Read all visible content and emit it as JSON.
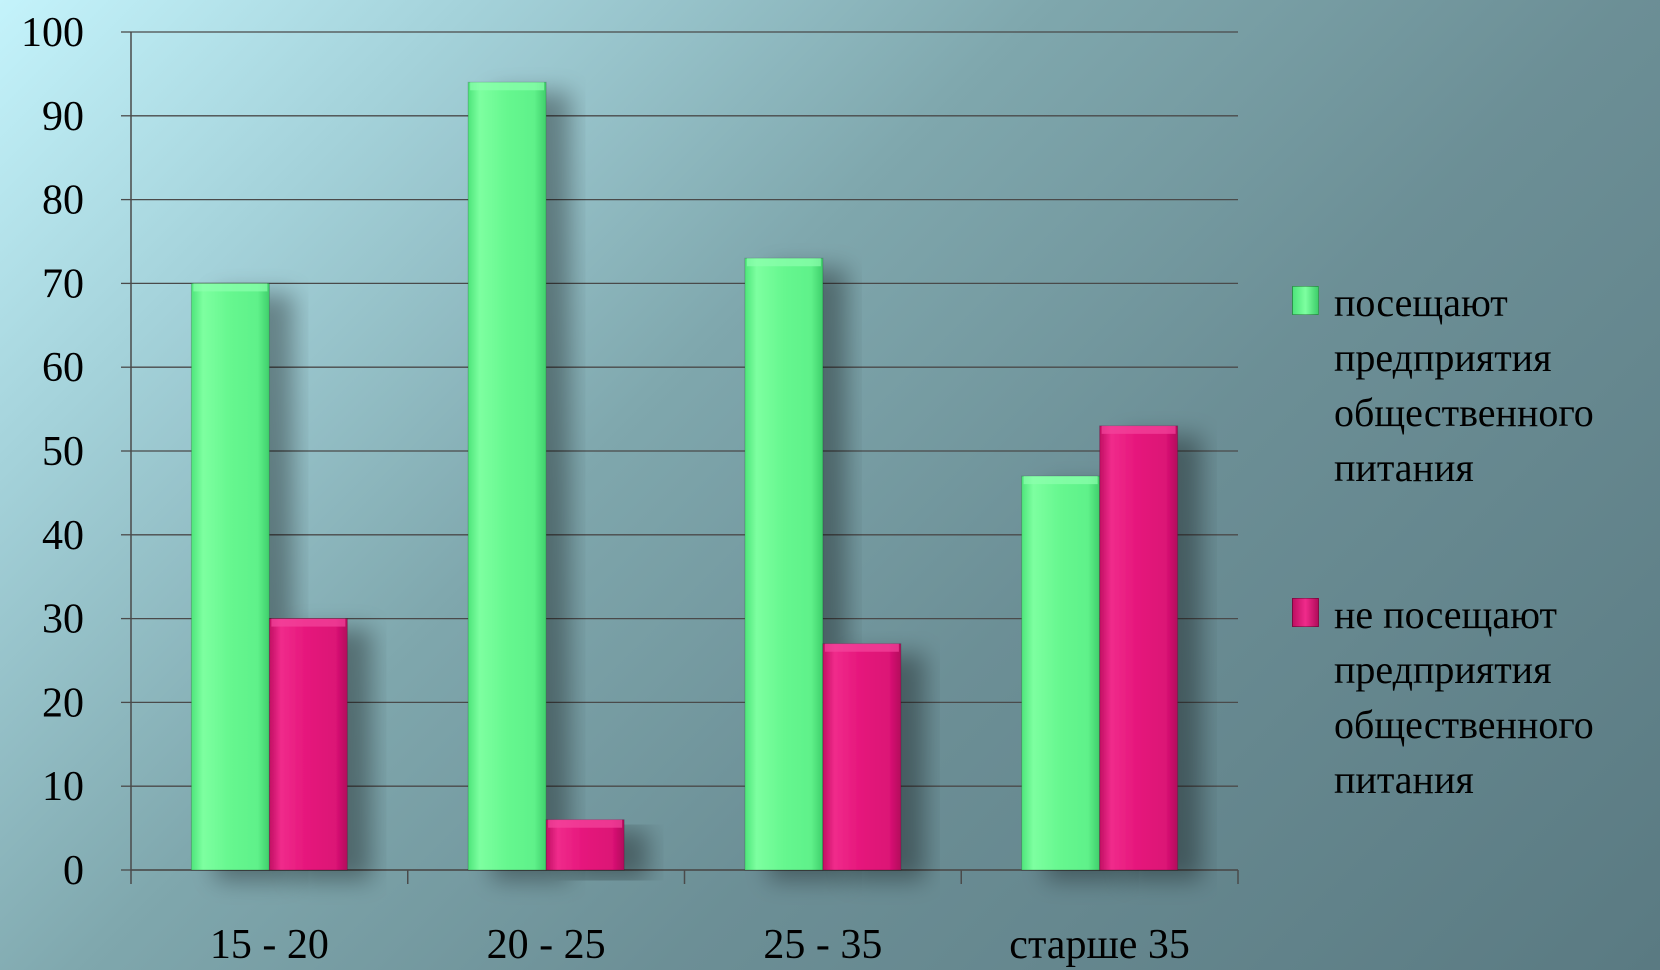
{
  "chart_data": {
    "type": "bar",
    "title": "",
    "xlabel": "",
    "ylabel": "",
    "categories": [
      "15 - 20",
      "20 - 25",
      "25 - 35",
      "старше 35"
    ],
    "series": [
      {
        "name": "посещают предприятия общественного питания",
        "values": [
          70,
          94,
          73,
          47
        ],
        "color": "#66f78f"
      },
      {
        "name": "не посещают предприятия общественного питания",
        "values": [
          30,
          6,
          27,
          53
        ],
        "color": "#e5157b"
      }
    ],
    "ylim": [
      0,
      100
    ],
    "yticks": [
      "0",
      "10",
      "20",
      "30",
      "40",
      "50",
      "60",
      "70",
      "80",
      "90",
      "100"
    ],
    "grid": true,
    "legend_position": "right"
  }
}
